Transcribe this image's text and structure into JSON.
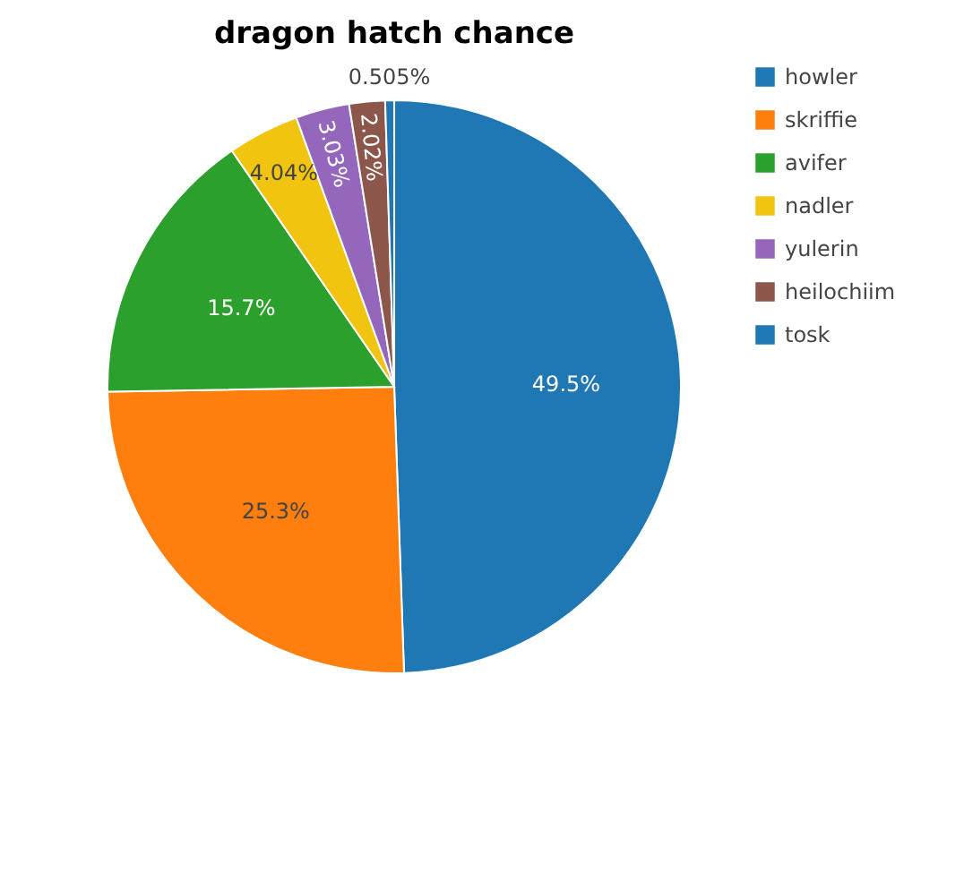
{
  "chart_data": {
    "type": "pie",
    "title": "dragon hatch chance",
    "categories": [
      "howler",
      "skriffie",
      "avifer",
      "nadler",
      "yulerin",
      "heilochiim",
      "tosk"
    ],
    "values": [
      49.5,
      25.3,
      15.7,
      4.04,
      3.03,
      2.02,
      0.505
    ],
    "value_labels": [
      "49.5%",
      "25.3%",
      "15.7%",
      "4.04%",
      "3.03%",
      "2.02%",
      "0.505%"
    ],
    "colors": [
      "#1f77b4",
      "#ff7f0e",
      "#2ca02c",
      "#f1c40f",
      "#9467bd",
      "#8c564b",
      "#1f77b4"
    ],
    "legend": "top right"
  }
}
